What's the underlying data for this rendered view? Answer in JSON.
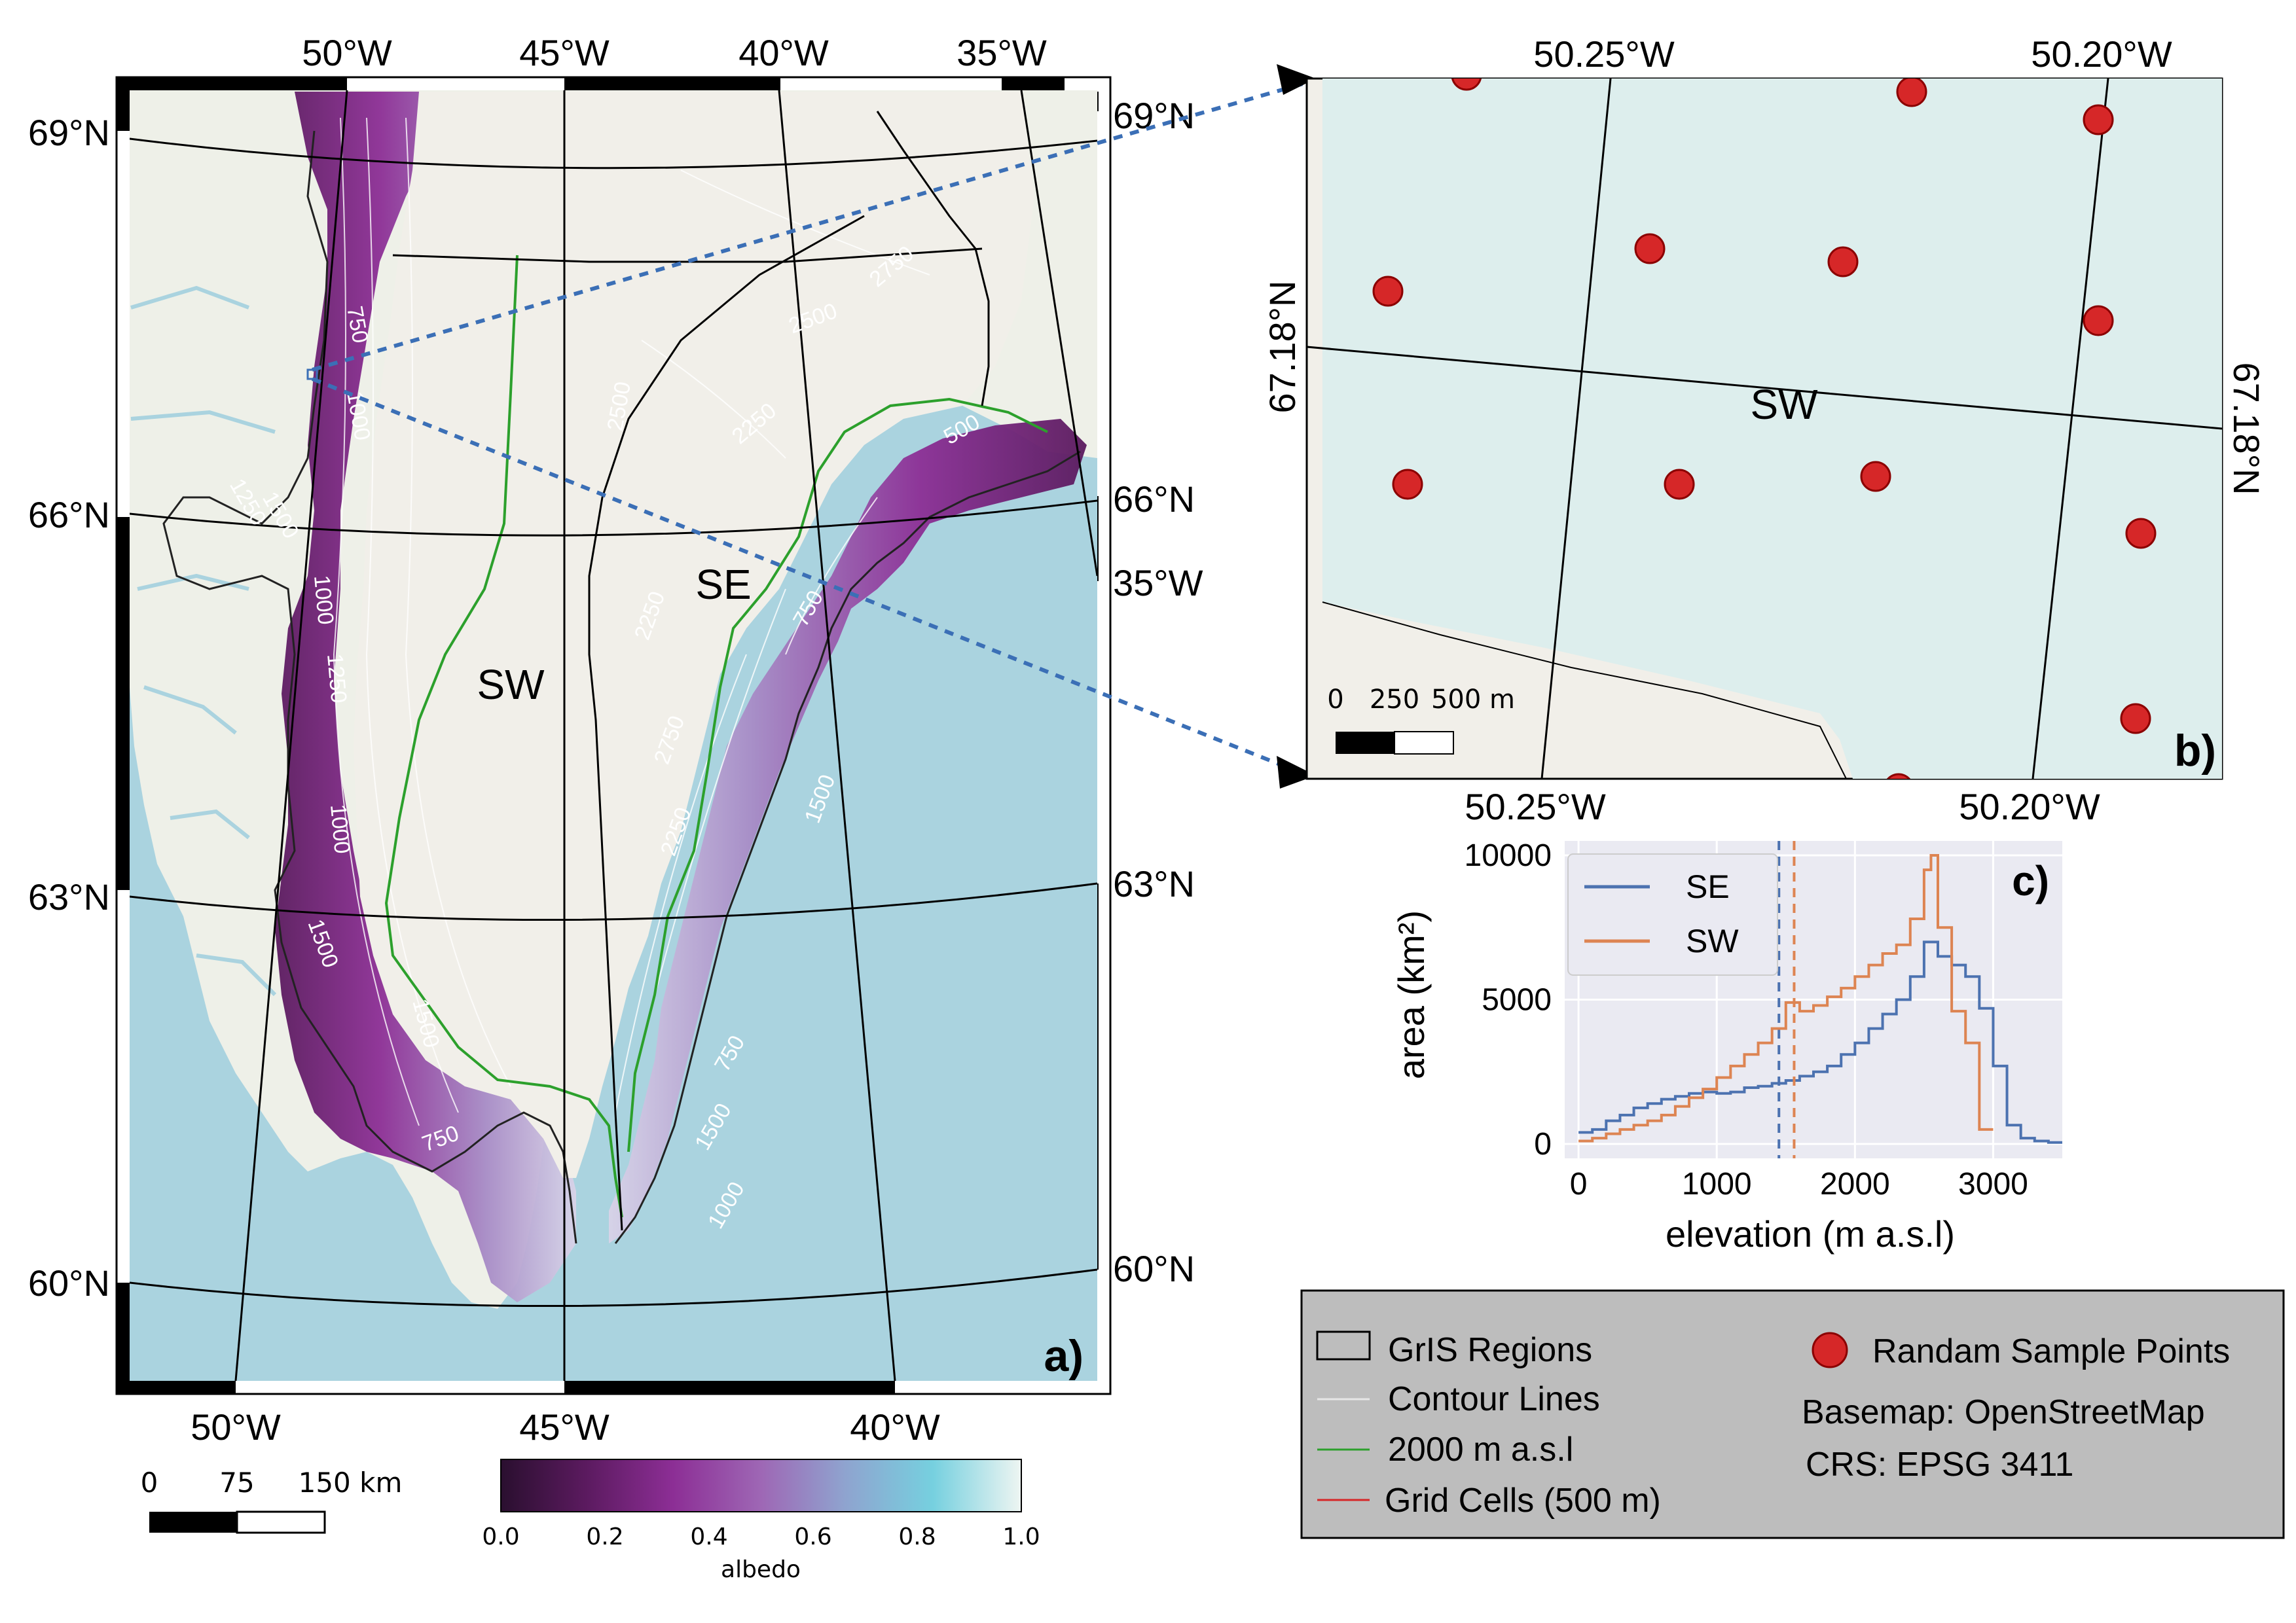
{
  "panel_a": {
    "label": "a)",
    "top_lon_labels": [
      "50°W",
      "45°W",
      "40°W",
      "35°W"
    ],
    "bottom_lon_labels": [
      "50°W",
      "45°W",
      "40°W"
    ],
    "left_lat_labels": [
      "69°N",
      "66°N",
      "63°N",
      "60°N"
    ],
    "right_lat_labels": [
      "69°N",
      "66°N",
      "63°N",
      "60°N"
    ],
    "right_lon_label": "35°W",
    "region_labels": [
      "SW",
      "SE",
      "SW"
    ],
    "contour_labels": [
      "750",
      "1000",
      "1250",
      "1500",
      "1000",
      "1250",
      "1500",
      "1000",
      "1500",
      "750",
      "1500",
      "2500",
      "2750",
      "2500",
      "2250",
      "2250",
      "2000",
      "2750",
      "2250",
      "2000",
      "750",
      "1250",
      "1500",
      "1000",
      "750",
      "500",
      "1000",
      "1500",
      "750",
      "500",
      "2000"
    ],
    "scalebar": {
      "labels": [
        "0",
        "75",
        "150 km"
      ]
    }
  },
  "colorbar": {
    "ticks": [
      "0.0",
      "0.2",
      "0.4",
      "0.6",
      "0.8",
      "1.0"
    ],
    "label": "albedo",
    "colors": [
      "#2a0f2f",
      "#5a1a5e",
      "#8c2e95",
      "#9e67b5",
      "#8fa3cf",
      "#76d0df",
      "#eef5f2"
    ]
  },
  "panel_b": {
    "label": "b)",
    "top_lon_labels": [
      "50.25°W",
      "50.20°W"
    ],
    "bottom_lon_labels": [
      "50.25°W",
      "50.20°W"
    ],
    "left_lat_label": "67.18°N",
    "right_lat_label": "67.18°N",
    "region_label": "SW",
    "scalebar": {
      "labels": [
        "0",
        "250",
        "500 m"
      ]
    }
  },
  "panel_c": {
    "label": "c)"
  },
  "chart_data": {
    "type": "line",
    "xlabel": "elevation (m a.s.l)",
    "ylabel": "area (km²)",
    "xticks": [
      0,
      1000,
      2000,
      3000
    ],
    "yticks": [
      0,
      5000,
      10000
    ],
    "xlim": [
      -100,
      3500
    ],
    "ylim": [
      -500,
      10500
    ],
    "grid": true,
    "legend_position": "top-left",
    "series": [
      {
        "name": "SE",
        "color": "#4c72b0",
        "mean_elevation": 1450,
        "x": [
          0,
          100,
          200,
          300,
          400,
          500,
          600,
          700,
          800,
          900,
          1000,
          1100,
          1200,
          1300,
          1400,
          1500,
          1600,
          1700,
          1800,
          1900,
          2000,
          2100,
          2200,
          2300,
          2400,
          2500,
          2600,
          2700,
          2800,
          2900,
          3000,
          3100,
          3200,
          3300,
          3400
        ],
        "y": [
          400,
          500,
          800,
          1000,
          1250,
          1400,
          1550,
          1650,
          1750,
          1800,
          1750,
          1800,
          1950,
          2000,
          2100,
          2200,
          2350,
          2500,
          2700,
          3100,
          3500,
          4000,
          4500,
          5000,
          5800,
          7000,
          6500,
          6200,
          5800,
          4700,
          2700,
          650,
          200,
          100,
          50
        ]
      },
      {
        "name": "SW",
        "color": "#dd8452",
        "mean_elevation": 1560,
        "x": [
          0,
          100,
          200,
          300,
          400,
          500,
          600,
          700,
          800,
          900,
          1000,
          1100,
          1200,
          1300,
          1400,
          1500,
          1600,
          1700,
          1800,
          1900,
          2000,
          2100,
          2200,
          2300,
          2400,
          2500,
          2550,
          2600,
          2700,
          2800,
          2900
        ],
        "y": [
          100,
          200,
          350,
          500,
          650,
          800,
          1000,
          1300,
          1600,
          1900,
          2300,
          2700,
          3100,
          3500,
          4000,
          4900,
          4600,
          4800,
          5100,
          5400,
          5800,
          6200,
          6600,
          6900,
          7800,
          9500,
          10000,
          7500,
          4600,
          3500,
          500
        ]
      }
    ]
  },
  "legend": {
    "items": [
      "GrIS Regions",
      "Contour Lines",
      "2000 m a.s.l",
      "Grid Cells (500 m)",
      "Randam Sample Points"
    ],
    "basemap": "Basemap: OpenStreetMap",
    "crs": "CRS: EPSG 3411"
  }
}
